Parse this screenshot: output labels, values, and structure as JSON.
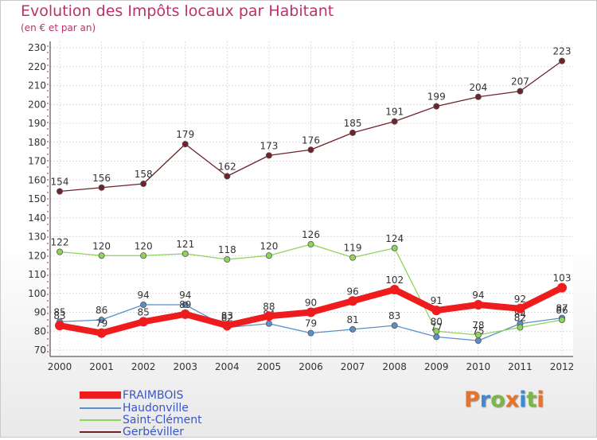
{
  "title": "Evolution des Impôts locaux par Habitant",
  "subtitle": "(en € et par an)",
  "logo": {
    "text": "Proxiti",
    "colors": [
      "#e5732b",
      "#3f8bd3",
      "#7ab648",
      "#e5732b",
      "#3f8bd3",
      "#7ab648",
      "#e5732b"
    ]
  },
  "chart_data": {
    "type": "line",
    "title": "Evolution des Impôts locaux par Habitant",
    "subtitle": "(en € et par an)",
    "xlabel": "",
    "ylabel": "",
    "x": [
      "2000",
      "2001",
      "2002",
      "2003",
      "2004",
      "2005",
      "2006",
      "2007",
      "2008",
      "2009",
      "2010",
      "2011",
      "2012"
    ],
    "ylim": [
      70,
      230
    ],
    "yticks": [
      70,
      80,
      90,
      100,
      110,
      120,
      130,
      140,
      150,
      160,
      170,
      180,
      190,
      200,
      210,
      220,
      230
    ],
    "grid": true,
    "legend": "bottom-left",
    "series": [
      {
        "name": "Haudonville",
        "color": "#5b8fc7",
        "values": [
          85,
          86,
          94,
          94,
          82,
          84,
          79,
          81,
          83,
          77,
          75,
          84,
          87
        ]
      },
      {
        "name": "Saint-Clément",
        "color": "#8fd45a",
        "values": [
          122,
          120,
          120,
          121,
          118,
          120,
          126,
          119,
          124,
          80,
          78,
          82,
          86
        ]
      },
      {
        "name": "Gerbéviller",
        "color": "#6e2229",
        "values": [
          154,
          156,
          158,
          179,
          162,
          173,
          176,
          185,
          191,
          199,
          204,
          207,
          223
        ]
      },
      {
        "name": "FRAIMBOIS",
        "color": "#ee1c1c",
        "values": [
          83,
          79,
          85,
          89,
          83,
          88,
          90,
          96,
          102,
          91,
          94,
          92,
          103
        ]
      }
    ],
    "legend_order": [
      "FRAIMBOIS",
      "Haudonville",
      "Saint-Clément",
      "Gerbéviller"
    ]
  }
}
